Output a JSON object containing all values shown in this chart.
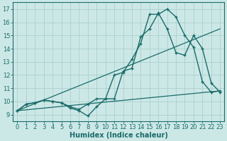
{
  "xlabel": "Humidex (Indice chaleur)",
  "bg_color": "#cce8e6",
  "grid_color": "#aacfcd",
  "line_color": "#1a6b6b",
  "xlim": [
    -0.5,
    23.5
  ],
  "ylim": [
    8.5,
    17.5
  ],
  "xticks": [
    0,
    1,
    2,
    3,
    4,
    5,
    6,
    7,
    8,
    9,
    10,
    11,
    12,
    13,
    14,
    15,
    16,
    17,
    18,
    19,
    20,
    21,
    22,
    23
  ],
  "yticks": [
    9,
    10,
    11,
    12,
    13,
    14,
    15,
    16,
    17
  ],
  "curve1_x": [
    0,
    1,
    2,
    3,
    4,
    5,
    6,
    7,
    8,
    9,
    10,
    11,
    12,
    13,
    14,
    15,
    16,
    17,
    18,
    19,
    20,
    21,
    22,
    23
  ],
  "curve1_y": [
    9.3,
    9.8,
    9.9,
    10.1,
    10.0,
    9.9,
    9.5,
    9.3,
    8.9,
    9.6,
    10.2,
    12.0,
    12.2,
    13.2,
    14.4,
    16.6,
    16.6,
    17.0,
    16.4,
    15.0,
    14.1,
    11.5,
    10.7,
    10.8
  ],
  "curve2_x": [
    0,
    1,
    2,
    3,
    4,
    5,
    6,
    7,
    8,
    9,
    10,
    11,
    12,
    13,
    14,
    15,
    16,
    17,
    18,
    19,
    20,
    21,
    22,
    23
  ],
  "curve2_y": [
    9.3,
    9.8,
    9.9,
    10.1,
    10.0,
    9.9,
    9.6,
    9.4,
    9.8,
    10.2,
    10.2,
    10.2,
    12.3,
    12.5,
    14.9,
    15.5,
    16.7,
    15.5,
    13.7,
    13.5,
    15.0,
    14.0,
    11.4,
    10.7
  ],
  "line3_x": [
    0,
    23
  ],
  "line3_y": [
    9.3,
    15.5
  ],
  "line4_x": [
    0,
    23
  ],
  "line4_y": [
    9.3,
    10.8
  ],
  "xlabel_fontsize": 7,
  "tick_fontsize": 6
}
